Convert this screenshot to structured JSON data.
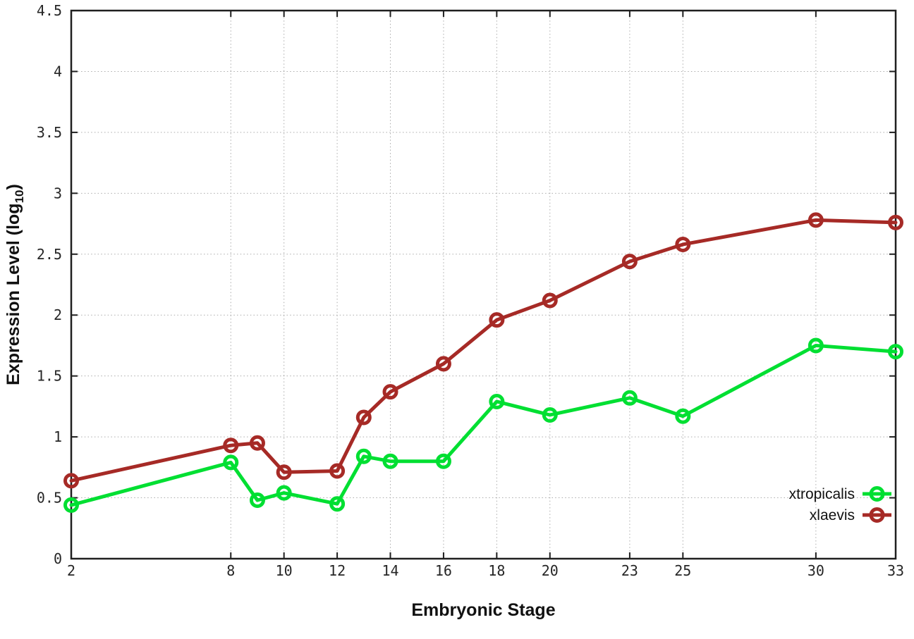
{
  "chart_data": {
    "type": "line",
    "title": "",
    "xlabel": "Embryonic Stage",
    "ylabel": "Expression Level (log10)",
    "ylabel_parts": {
      "pre": "Expression Level (log",
      "sub": "10",
      "post": ")"
    },
    "x": [
      2,
      8,
      9,
      10,
      12,
      13,
      14,
      16,
      18,
      20,
      23,
      25,
      30,
      33
    ],
    "xlim": [
      2,
      33
    ],
    "ylim": [
      0,
      4.5
    ],
    "xticks": [
      2,
      8,
      10,
      12,
      14,
      16,
      18,
      20,
      23,
      25,
      30,
      33
    ],
    "xtick_labels": [
      "2",
      "8",
      "10",
      "12",
      "14",
      "16",
      "18",
      "20",
      "23",
      "25",
      "30",
      "33"
    ],
    "yticks": [
      0,
      0.5,
      1,
      1.5,
      2,
      2.5,
      3,
      3.5,
      4,
      4.5
    ],
    "ytick_labels": [
      "0",
      "0.5",
      "1",
      "1.5",
      "2",
      "2.5",
      "3",
      "3.5",
      "4",
      "4.5"
    ],
    "grid": true,
    "marker": "open-circle",
    "legend_position": "inside-bottom-right",
    "series": [
      {
        "name": "xtropicalis",
        "color": "#00df32",
        "values": [
          0.44,
          0.79,
          0.48,
          0.54,
          0.45,
          0.84,
          0.8,
          0.8,
          1.29,
          1.18,
          1.32,
          1.17,
          1.75,
          1.7
        ]
      },
      {
        "name": "xlaevis",
        "color": "#a62a26",
        "values": [
          0.64,
          0.93,
          0.95,
          0.71,
          0.72,
          1.16,
          1.37,
          1.6,
          1.96,
          2.12,
          2.44,
          2.58,
          2.78,
          2.76
        ]
      }
    ],
    "colors": {
      "background": "#ffffff",
      "axis": "#1f1f1f",
      "grid": "#ababab",
      "tick_text": "#262626",
      "label_text": "#111111"
    }
  }
}
